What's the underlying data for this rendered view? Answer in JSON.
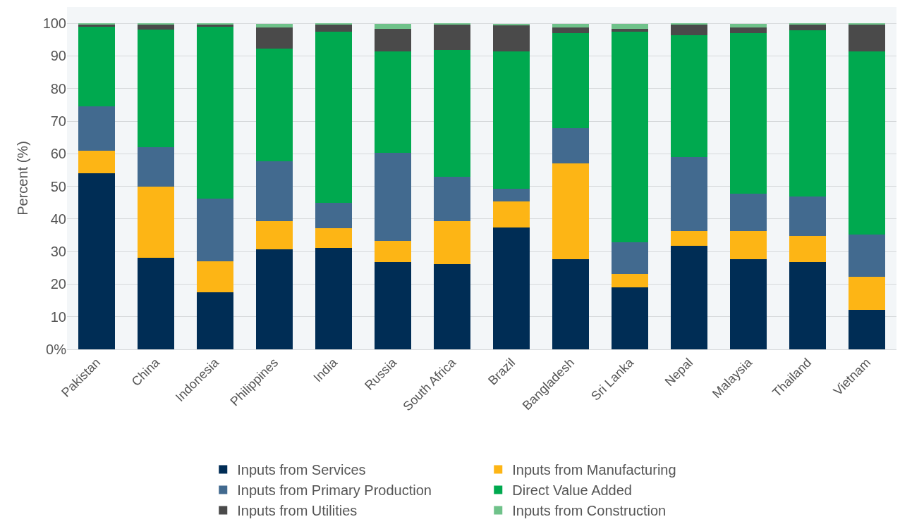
{
  "chart_data": {
    "type": "bar",
    "stacked": true,
    "ylabel": "Percent (%)",
    "categories": [
      "Pakistan",
      "China",
      "Indonesia",
      "Philippines",
      "India",
      "Russia",
      "South Africa",
      "Brazil",
      "Bangladesh",
      "Sri Lanka",
      "Nepal",
      "Malaysia",
      "Thailand",
      "Vietnam"
    ],
    "series": [
      {
        "name": "Inputs from Services",
        "color": "#002d55",
        "values": [
          54,
          28,
          17.5,
          30.7,
          31.2,
          26.7,
          26.2,
          37.3,
          27.7,
          19.1,
          31.7,
          27.7,
          26.7,
          12
        ]
      },
      {
        "name": "Inputs from Manufacturing",
        "color": "#fdb515",
        "values": [
          7,
          22,
          9.5,
          8.6,
          6,
          6.5,
          13.1,
          8.1,
          29.3,
          4,
          4.5,
          8.5,
          8,
          10.2
        ]
      },
      {
        "name": "Inputs from Primary Production",
        "color": "#426a8f",
        "values": [
          13.5,
          12,
          19.3,
          18.3,
          7.8,
          27.1,
          13.7,
          3.9,
          10.8,
          9.7,
          22.8,
          11.6,
          12.1,
          13
        ]
      },
      {
        "name": "Direct Value Added",
        "color": "#00a94f",
        "values": [
          24.5,
          36,
          52.7,
          34.7,
          52.5,
          31.1,
          38.8,
          42.1,
          29.1,
          64.6,
          37.4,
          49.1,
          51.1,
          56.2
        ]
      },
      {
        "name": "Inputs from Utilities",
        "color": "#4a4a4a",
        "values": [
          0.7,
          1.6,
          0.7,
          6.4,
          2.1,
          6.9,
          7.8,
          8,
          1.9,
          0.9,
          3.2,
          1.9,
          1.7,
          8.2
        ]
      },
      {
        "name": "Inputs from Construction",
        "color": "#6fc28a",
        "values": [
          0.3,
          0.4,
          0.3,
          1.1,
          0.4,
          1.5,
          0.4,
          0.3,
          1,
          1.5,
          0.4,
          1,
          0.4,
          0.4
        ]
      }
    ],
    "ylim": [
      0,
      105
    ],
    "yticks": [
      {
        "value": 0,
        "label": "0%"
      },
      10,
      20,
      30,
      40,
      50,
      60,
      70,
      80,
      90,
      100
    ],
    "grid": "y",
    "legend": "bottom"
  }
}
